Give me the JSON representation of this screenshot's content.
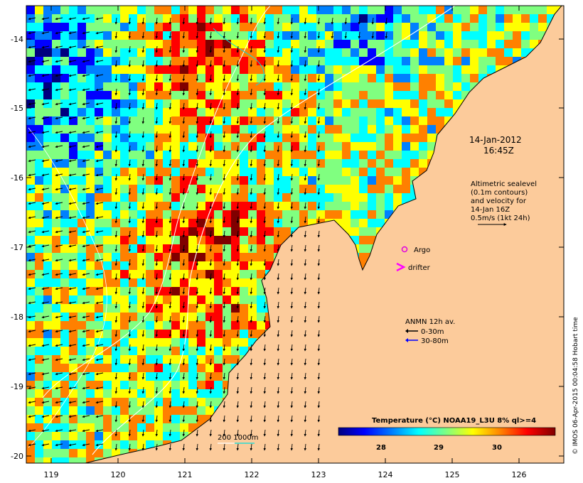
{
  "map": {
    "date_line": "14-Jan-2012",
    "time_line": "16:45Z",
    "altimetry_lines": [
      "Altimetric sealevel",
      "(0.1m contours)",
      "and velocity for",
      "14-Jan 16Z",
      "0.5m/s (1kt 24h)"
    ],
    "argo_label": "Argo",
    "drifter_label": "drifter",
    "anmn_title": "ANMN 12h av.",
    "anmn_depth_shallow": "0-30m",
    "anmn_depth_deep": "30-80m",
    "isobath_label": "200  1000m",
    "colorbar_title": "Temperature (°C) NOAA19_L3U 8% ql>=4",
    "colorbar_ticks": [
      "28",
      "29",
      "30"
    ],
    "credit": "© IMOS 06-Apr-2015 00:04:58 Hobart time",
    "x_ticks": [
      "119",
      "120",
      "121",
      "122",
      "123",
      "124",
      "125",
      "126"
    ],
    "y_ticks": [
      "-14",
      "-15",
      "-16",
      "-17",
      "-18",
      "-19",
      "-20"
    ],
    "colors": {
      "land": "#fccb9b",
      "argo": "#e000e0",
      "drifter": "#ff00ff",
      "anmn_shallow": "#000000",
      "anmn_deep": "#0000ff",
      "isobath_200": "#ffffff",
      "isobath_1000": "#00e0e0",
      "colorbar": [
        "#00007f",
        "#0000ff",
        "#0080ff",
        "#00ffff",
        "#80ff80",
        "#ffff00",
        "#ff8000",
        "#ff0000",
        "#800000"
      ]
    }
  }
}
